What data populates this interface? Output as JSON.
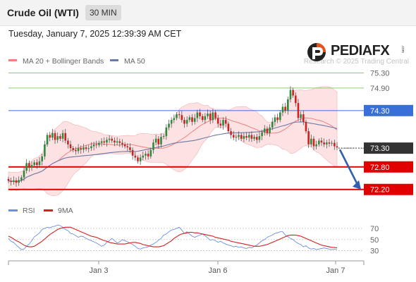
{
  "header": {
    "title": "Crude Oil (WTI)",
    "timeframe": "30 MIN",
    "datetime": "Tuesday, January 7, 2025 12:39:39 AM CET"
  },
  "brand": {
    "name": "PEDIAFX",
    "tm": ".com",
    "watermark": "Research © 2025 Trading Central"
  },
  "colors": {
    "bull": "#2e8b3e",
    "bear": "#cc2222",
    "resistance_green": "#8fcf6c",
    "pivot_blue": "#3a6fd8",
    "support_red": "#e00000",
    "current_dark": "#333333",
    "ma20": "#f08080",
    "ma50": "#6a7aa8",
    "bb_fill": "#fbd3d3",
    "rsi": "#6f8fe0",
    "ma9": "#d62020",
    "arrow": "#2f5fae"
  },
  "chart_data": [
    {
      "type": "candlestick",
      "legend": [
        {
          "name": "MA 20 + Bollinger Bands",
          "color": "#f08080"
        },
        {
          "name": "MA 50",
          "color": "#6a7aa8"
        }
      ],
      "ylim": [
        71.97,
        75.61
      ],
      "levels": [
        {
          "value": 75.3,
          "label": "75.30",
          "kind": "resistance"
        },
        {
          "value": 74.9,
          "label": "74.90",
          "kind": "resistance"
        },
        {
          "value": 74.3,
          "label": "74.30",
          "kind": "pivot"
        },
        {
          "value": 73.3,
          "label": "73.30",
          "kind": "current"
        },
        {
          "value": 72.8,
          "label": "72.80",
          "kind": "support"
        },
        {
          "value": 72.2,
          "label": "72.20",
          "kind": "support"
        }
      ],
      "x_ticks": [
        "Jan 3",
        "Jan 6",
        "Jan 7"
      ],
      "projection": {
        "from": 73.3,
        "to": 72.2,
        "direction": "down"
      },
      "close": [
        72.43,
        72.4,
        72.44,
        72.38,
        72.45,
        72.52,
        72.7,
        72.9,
        72.78,
        72.85,
        72.92,
        72.85,
        72.95,
        73.08,
        73.4,
        73.65,
        73.58,
        73.7,
        73.52,
        73.62,
        73.55,
        73.7,
        73.5,
        73.4,
        73.3,
        73.25,
        73.22,
        73.3,
        73.26,
        73.32,
        73.28,
        73.3,
        73.35,
        73.4,
        73.38,
        73.44,
        73.48,
        73.45,
        73.52,
        73.55,
        73.5,
        73.45,
        73.48,
        73.44,
        73.4,
        73.35,
        73.32,
        73.25,
        73.1,
        73.05,
        72.95,
        73.05,
        73.1,
        73.15,
        73.08,
        73.25,
        73.45,
        73.55,
        73.4,
        73.6,
        73.62,
        73.85,
        73.95,
        74.05,
        74.1,
        74.2,
        74.18,
        74.05,
        73.95,
        74.05,
        74.12,
        74.0,
        74.1,
        74.25,
        74.15,
        74.05,
        74.15,
        74.22,
        74.05,
        74.25,
        74.1,
        73.95,
        73.9,
        74.05,
        73.95,
        73.75,
        73.65,
        73.58,
        73.6,
        73.65,
        73.55,
        73.62,
        73.58,
        73.65,
        73.55,
        73.6,
        73.52,
        73.62,
        73.72,
        73.82,
        73.7,
        73.85,
        74.0,
        74.12,
        74.05,
        74.25,
        74.4,
        74.3,
        74.6,
        74.85,
        74.7,
        74.5,
        74.1,
        74.2,
        74.0,
        73.75,
        73.4,
        73.55,
        73.35,
        73.4,
        73.5,
        73.45,
        73.4,
        73.45,
        73.42,
        73.44,
        73.35,
        73.32
      ]
    },
    {
      "type": "line",
      "legend": [
        {
          "name": "RSI",
          "color": "#6f8fe0"
        },
        {
          "name": "9MA",
          "color": "#d62020"
        }
      ],
      "ylim": [
        22,
        80
      ],
      "y_ticks": [
        70,
        50,
        30
      ],
      "series": [
        {
          "name": "RSI",
          "values": [
            52,
            47,
            45,
            40,
            36,
            32,
            33,
            38,
            42,
            48,
            55,
            58,
            62,
            68,
            70,
            72,
            71,
            73,
            74,
            76,
            75,
            72,
            68,
            66,
            61,
            60,
            57,
            54,
            56,
            55,
            52,
            50,
            48,
            46,
            44,
            41,
            38,
            40,
            45,
            48,
            52,
            48,
            44,
            46,
            50,
            48,
            46,
            44,
            41,
            38,
            34,
            33,
            35,
            36,
            37,
            40,
            42,
            45,
            49,
            52,
            58,
            60,
            64,
            67,
            68,
            70,
            72,
            67,
            61,
            64,
            60,
            56,
            54,
            56,
            58,
            60,
            57,
            53,
            49,
            50,
            48,
            45,
            47,
            44,
            42,
            40,
            39,
            37,
            38,
            36,
            37,
            35,
            34,
            36,
            35,
            38,
            40,
            44,
            48,
            50,
            54,
            56,
            58,
            61,
            62,
            64,
            64,
            58,
            55,
            52,
            50,
            46,
            43,
            41,
            37,
            39,
            35,
            33,
            34,
            32,
            33,
            34,
            35,
            34,
            33,
            32,
            33,
            32
          ]
        },
        {
          "name": "9MA",
          "values": [
            56,
            54,
            51,
            48,
            46,
            43,
            40,
            38,
            37,
            37,
            38,
            41,
            44,
            47,
            51,
            55,
            59,
            62,
            65,
            68,
            70,
            71,
            72,
            72,
            72,
            70,
            68,
            66,
            64,
            62,
            60,
            58,
            56,
            55,
            54,
            52,
            50,
            48,
            47,
            45,
            44,
            43,
            42,
            42,
            42,
            42,
            43,
            44,
            45,
            45,
            44,
            43,
            41,
            40,
            39,
            38,
            37,
            37,
            37,
            38,
            39,
            42,
            45,
            48,
            52,
            55,
            58,
            60,
            61,
            62,
            63,
            63,
            62,
            62,
            61,
            60,
            59,
            58,
            57,
            56,
            54,
            53,
            52,
            51,
            50,
            49,
            47,
            46,
            45,
            44,
            43,
            42,
            41,
            40,
            39,
            38,
            38,
            38,
            39,
            40,
            41,
            43,
            45,
            47,
            49,
            51,
            53,
            55,
            57,
            58,
            58,
            58,
            57,
            56,
            54,
            52,
            50,
            48,
            46,
            44,
            42,
            40,
            39,
            38,
            37,
            36,
            36,
            35
          ]
        }
      ]
    }
  ]
}
